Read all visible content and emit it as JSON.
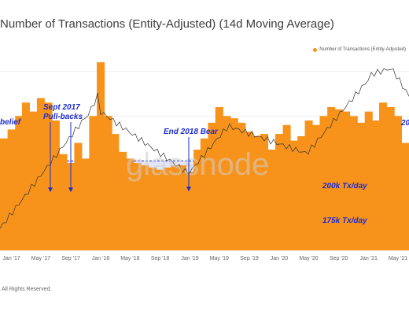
{
  "title": "Number of Transactions (Entity-Adjusted) (14d Moving Average)",
  "watermark": "glassnode",
  "footer": "All Rights Reserved.",
  "colors": {
    "bars": "#f7931a",
    "price_line": "#333333",
    "band_fill": "#d9dcf7",
    "annotation": "#1d2ccf"
  },
  "chart_data": {
    "type": "area",
    "title": "Number of Transactions (Entity-Adjusted) (14d Moving Average)",
    "legend": [
      "Number of Transactions (Entity-Adjusted)"
    ],
    "legend_position": "top-right",
    "xlabel": "",
    "ylabel": "",
    "x_ticks": [
      "Jan '17",
      "May '17",
      "Sep '17",
      "Jan '18",
      "May '18",
      "Sep '18",
      "Jan '19",
      "May '19",
      "Sep '19",
      "Jan '20",
      "May '20",
      "Sep '20",
      "Jan '21",
      "May '21"
    ],
    "grid": true,
    "ylim": [
      0,
      450000
    ],
    "series": [
      {
        "name": "Number of Transactions (Entity-Adjusted)",
        "x": [
          "2016-12-01",
          "2017-01-01",
          "2017-02-01",
          "2017-03-01",
          "2017-04-01",
          "2017-05-01",
          "2017-06-01",
          "2017-07-01",
          "2017-08-01",
          "2017-09-01",
          "2017-10-01",
          "2017-11-01",
          "2017-12-01",
          "2018-01-01",
          "2018-02-01",
          "2018-03-01",
          "2018-04-01",
          "2018-05-01",
          "2018-06-01",
          "2018-07-01",
          "2018-08-01",
          "2018-09-01",
          "2018-10-01",
          "2018-11-01",
          "2018-12-01",
          "2019-01-01",
          "2019-02-01",
          "2019-03-01",
          "2019-04-01",
          "2019-05-01",
          "2019-06-01",
          "2019-07-01",
          "2019-08-01",
          "2019-09-01",
          "2019-10-01",
          "2019-11-01",
          "2019-12-01",
          "2020-01-01",
          "2020-02-01",
          "2020-03-01",
          "2020-04-01",
          "2020-05-01",
          "2020-06-01",
          "2020-07-01",
          "2020-08-01",
          "2020-09-01",
          "2020-10-01",
          "2020-11-01",
          "2020-12-01",
          "2021-01-01",
          "2021-02-01",
          "2021-03-01",
          "2021-04-01",
          "2021-05-01",
          "2021-06-01"
        ],
        "values": [
          250000,
          270000,
          300000,
          330000,
          310000,
          340000,
          330000,
          290000,
          215000,
          195000,
          240000,
          205000,
          300000,
          420000,
          300000,
          260000,
          220000,
          205000,
          195000,
          190000,
          185000,
          180000,
          185000,
          190000,
          190000,
          175000,
          225000,
          250000,
          285000,
          320000,
          300000,
          295000,
          285000,
          265000,
          255000,
          260000,
          225000,
          260000,
          280000,
          245000,
          255000,
          290000,
          280000,
          300000,
          320000,
          315000,
          310000,
          300000,
          285000,
          310000,
          290000,
          330000,
          320000,
          300000,
          240000
        ]
      }
    ],
    "annotations": [
      {
        "text": "belief"
      },
      {
        "text": "Sept 2017"
      },
      {
        "text": "Pull-backs"
      },
      {
        "text": "End 2018 Bear"
      },
      {
        "text": "20"
      },
      {
        "text": "200k Tx/day",
        "y": 200000
      },
      {
        "text": "175k Tx/day",
        "y": 175000
      }
    ]
  }
}
